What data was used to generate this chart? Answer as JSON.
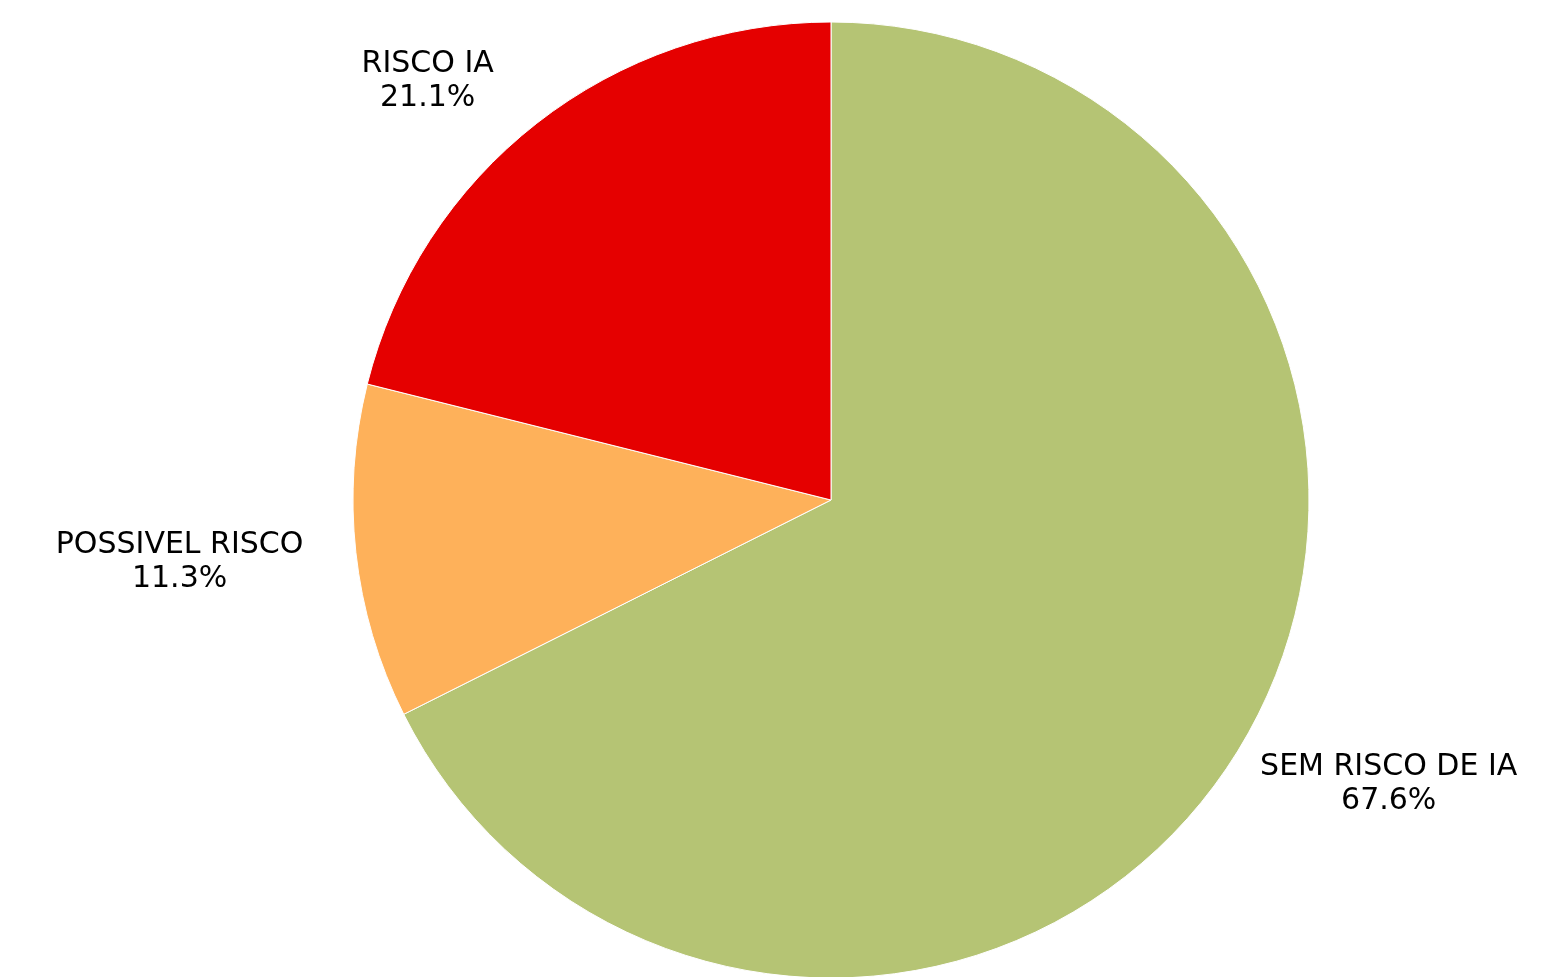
{
  "chart_data": {
    "type": "pie",
    "categories": [
      "SEM RISCO DE IA",
      "POSSIVEL RISCO",
      "RISCO IA"
    ],
    "values": [
      67.6,
      11.3,
      21.1
    ],
    "colors": [
      "#b5c474",
      "#feb15a",
      "#e50000"
    ],
    "value_labels": [
      "67.6%",
      "11.3%",
      "21.1%"
    ]
  }
}
